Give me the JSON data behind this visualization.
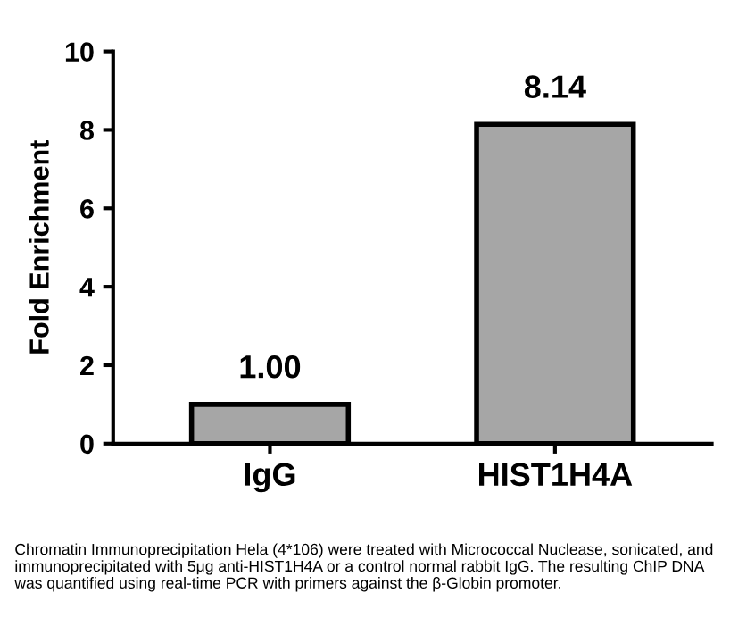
{
  "chart_data": {
    "type": "bar",
    "ylabel": "Fold Enrichment",
    "categories": [
      "IgG",
      "HIST1H4A"
    ],
    "values": [
      1.0,
      8.14
    ],
    "value_labels": [
      "1.00",
      "8.14"
    ],
    "color": "#a6a6a6",
    "ylim": [
      0,
      10
    ],
    "yticks": [
      0,
      2,
      4,
      6,
      8,
      10
    ],
    "grid": false,
    "legend": false,
    "annotations": [
      "Chromatin Immunoprecipitation Hela (4*106) were treated with Micrococcal Nuclease, sonicated, and immunoprecipitated with 5μg anti-HIST1H4A or a control normal rabbit IgG. The resulting ChIP DNA was quantified using real-time PCR with primers against the β-Globin promoter."
    ]
  }
}
